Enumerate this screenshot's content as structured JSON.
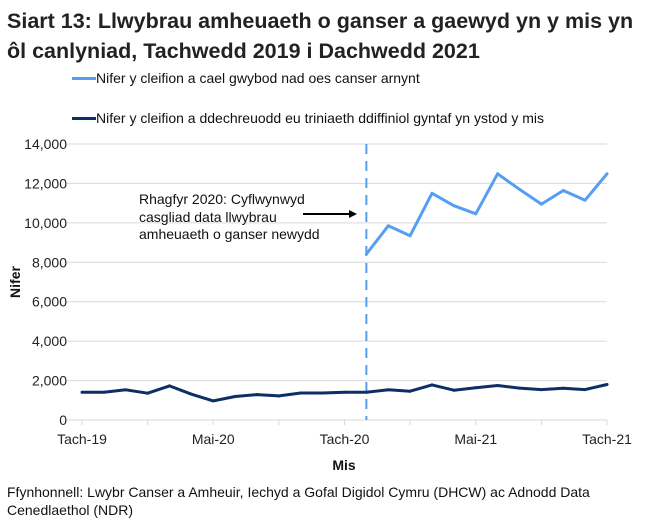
{
  "title": "Siart 13: Llwybrau amheuaeth o ganser a gaewyd yn y mis yn ôl canlyniad, Tachwedd 2019 i Dachwedd 2021",
  "source": "Ffynhonnell: Lwybr Canser a Amheuir, Iechyd a Gofal Digidol Cymru (DHCW) ac Adnodd Data Cenedlaethol (NDR)",
  "chart_data": {
    "type": "line",
    "title": "Siart 13: Llwybrau amheuaeth o ganser a gaewyd yn y mis yn ôl canlyniad, Tachwedd 2019 i Dachwedd 2021",
    "xlabel": "Mis",
    "ylabel": "Nifer",
    "ylim": [
      0,
      14000
    ],
    "yticks": [
      0,
      2000,
      4000,
      6000,
      8000,
      10000,
      12000,
      14000
    ],
    "ytick_labels": [
      "0",
      "2,000",
      "4,000",
      "6,000",
      "8,000",
      "10,000",
      "12,000",
      "14,000"
    ],
    "x": [
      "Nov-19",
      "Dec-19",
      "Jan-20",
      "Feb-20",
      "Mar-20",
      "Apr-20",
      "May-20",
      "Jun-20",
      "Jul-20",
      "Aug-20",
      "Sep-20",
      "Oct-20",
      "Nov-20",
      "Dec-20",
      "Jan-21",
      "Feb-21",
      "Mar-21",
      "Apr-21",
      "May-21",
      "Jun-21",
      "Jul-21",
      "Aug-21",
      "Sep-21",
      "Oct-21",
      "Nov-21"
    ],
    "xtick_labels": [
      {
        "index": 0,
        "label": "Tach-19"
      },
      {
        "index": 6,
        "label": "Mai-20"
      },
      {
        "index": 12,
        "label": "Tach-20"
      },
      {
        "index": 18,
        "label": "Mai-21"
      },
      {
        "index": 24,
        "label": "Tach-21"
      }
    ],
    "grid": true,
    "legend": "top",
    "series": [
      {
        "name": "Nifer y cleifion a cael gwybod nad oes canser arnynt",
        "color": "#559ef2",
        "values": [
          null,
          null,
          null,
          null,
          null,
          null,
          null,
          null,
          null,
          null,
          null,
          null,
          null,
          8420,
          9850,
          9350,
          11500,
          10870,
          10460,
          12490,
          11700,
          10950,
          11640,
          11150,
          12490
        ]
      },
      {
        "name": "Nifer y cleifion a ddechreuodd eu triniaeth ddiffiniol gyntaf yn ystod y mis",
        "color": "#0d2f66",
        "values": [
          1410,
          1410,
          1530,
          1360,
          1730,
          1310,
          970,
          1190,
          1290,
          1220,
          1370,
          1370,
          1410,
          1410,
          1530,
          1460,
          1780,
          1510,
          1640,
          1750,
          1620,
          1540,
          1610,
          1540,
          1800
        ]
      }
    ],
    "annotation": {
      "text": "Rhagfyr 2020: Cyflwynwyd casgliad data llwybrau amheuaeth o ganser newydd",
      "at_index": 13
    },
    "reference_line": {
      "at_index": 13,
      "style": "dashed",
      "color": "#559ef2"
    }
  }
}
